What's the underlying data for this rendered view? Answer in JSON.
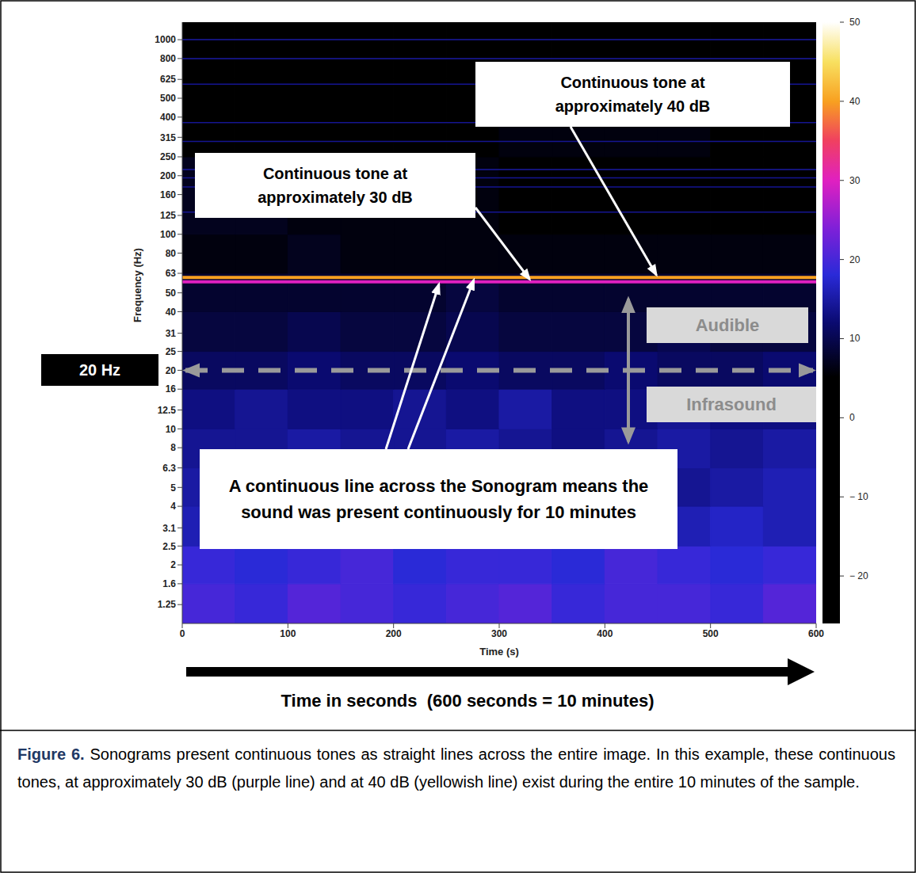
{
  "chart_data": {
    "type": "spectrogram",
    "x_label": "Time (s)",
    "y_label": "Frequency (Hz)",
    "log": "y",
    "xlim": [
      0,
      600
    ],
    "xticks": [
      0,
      100,
      200,
      300,
      400,
      500,
      600
    ],
    "ylim": [
      1,
      1230
    ],
    "yticks": [
      1.25,
      1.6,
      2,
      2.5,
      3.1,
      4,
      5,
      6.3,
      8,
      10,
      12.5,
      16,
      20,
      25,
      31,
      40,
      50,
      63,
      80,
      100,
      125,
      160,
      200,
      250,
      315,
      400,
      500,
      625,
      800,
      1000
    ],
    "colorbar": {
      "range": [
        -26,
        50
      ],
      "ticks": [
        -20,
        -10,
        0,
        10,
        20,
        30,
        40,
        50
      ]
    },
    "cells": {
      "x_edges": [
        0,
        50,
        100,
        150,
        200,
        250,
        300,
        350,
        400,
        450,
        500,
        550,
        600
      ],
      "y_edges": [
        1,
        1.6,
        2.5,
        4,
        6.3,
        10,
        16,
        25,
        40,
        56,
        63,
        100,
        250,
        630,
        1230
      ],
      "values": [
        [
          20,
          19,
          21,
          20,
          19,
          20,
          21,
          19,
          20,
          20,
          19,
          21
        ],
        [
          19,
          18,
          19,
          20,
          18,
          19,
          19,
          18,
          20,
          19,
          18,
          19
        ],
        [
          16,
          17,
          16,
          15,
          16,
          17,
          16,
          16,
          15,
          16,
          17,
          16
        ],
        [
          15,
          15,
          16,
          15,
          14,
          15,
          16,
          15,
          15,
          14,
          15,
          16
        ],
        [
          14,
          14,
          15,
          14,
          14,
          15,
          14,
          13,
          14,
          15,
          14,
          15
        ],
        [
          13,
          14,
          13,
          13,
          14,
          13,
          15,
          13,
          13,
          14,
          13,
          13
        ],
        [
          11,
          11,
          12,
          11,
          11,
          12,
          11,
          11,
          12,
          11,
          11,
          12
        ],
        [
          9,
          9,
          10,
          9,
          9,
          10,
          9,
          9,
          9,
          10,
          9,
          9
        ],
        [
          8,
          8,
          8,
          8,
          8,
          9,
          8,
          8,
          8,
          8,
          8,
          8
        ],
        [
          8,
          8,
          8,
          8,
          8,
          8,
          8,
          8,
          8,
          8,
          8,
          8
        ],
        [
          6,
          6,
          7,
          6,
          6,
          6,
          6,
          6,
          6,
          6,
          6,
          6
        ],
        [
          7,
          7,
          6,
          6,
          6,
          6,
          5,
          5,
          5,
          5,
          5,
          5
        ],
        [
          5,
          5,
          5,
          5,
          5,
          5,
          6,
          6,
          6,
          6,
          5,
          5
        ],
        [
          4,
          4,
          4,
          4,
          4,
          4,
          4,
          4,
          4,
          4,
          4,
          4
        ]
      ]
    },
    "tones": [
      {
        "frequency": 60,
        "level": 40
      },
      {
        "frequency": 57,
        "level": 30
      }
    ],
    "faint_tones": [
      {
        "frequency": 1000,
        "level": 15
      },
      {
        "frequency": 800,
        "level": 15
      },
      {
        "frequency": 590,
        "level": 14
      },
      {
        "frequency": 375,
        "level": 14
      },
      {
        "frequency": 300,
        "level": 14
      },
      {
        "frequency": 215,
        "level": 15
      },
      {
        "frequency": 195,
        "level": 14
      },
      {
        "frequency": 175,
        "level": 14
      },
      {
        "frequency": 130,
        "level": 14
      }
    ],
    "annotations": {
      "tone_40": "Continuous tone at approximately 40 dB",
      "tone_30": "Continuous tone at approximately 30 dB",
      "continuous_line": "A continuous line across the Sonogram means the sound was present continuously for 10 minutes",
      "boundary": {
        "value": 20,
        "label": "20 Hz"
      },
      "audible": "Audible",
      "infrasound": "Infrasound",
      "time_note": "Time in seconds  (600 seconds = 10 minutes)"
    },
    "caption": {
      "label": "Figure 6.",
      "text": "Sonograms present continuous tones as straight lines across the entire image. In this example, these continuous tones, at approximately 30 dB (purple line) and at 40 dB (yellowish line) exist during the entire 10 minutes of the sample."
    }
  }
}
